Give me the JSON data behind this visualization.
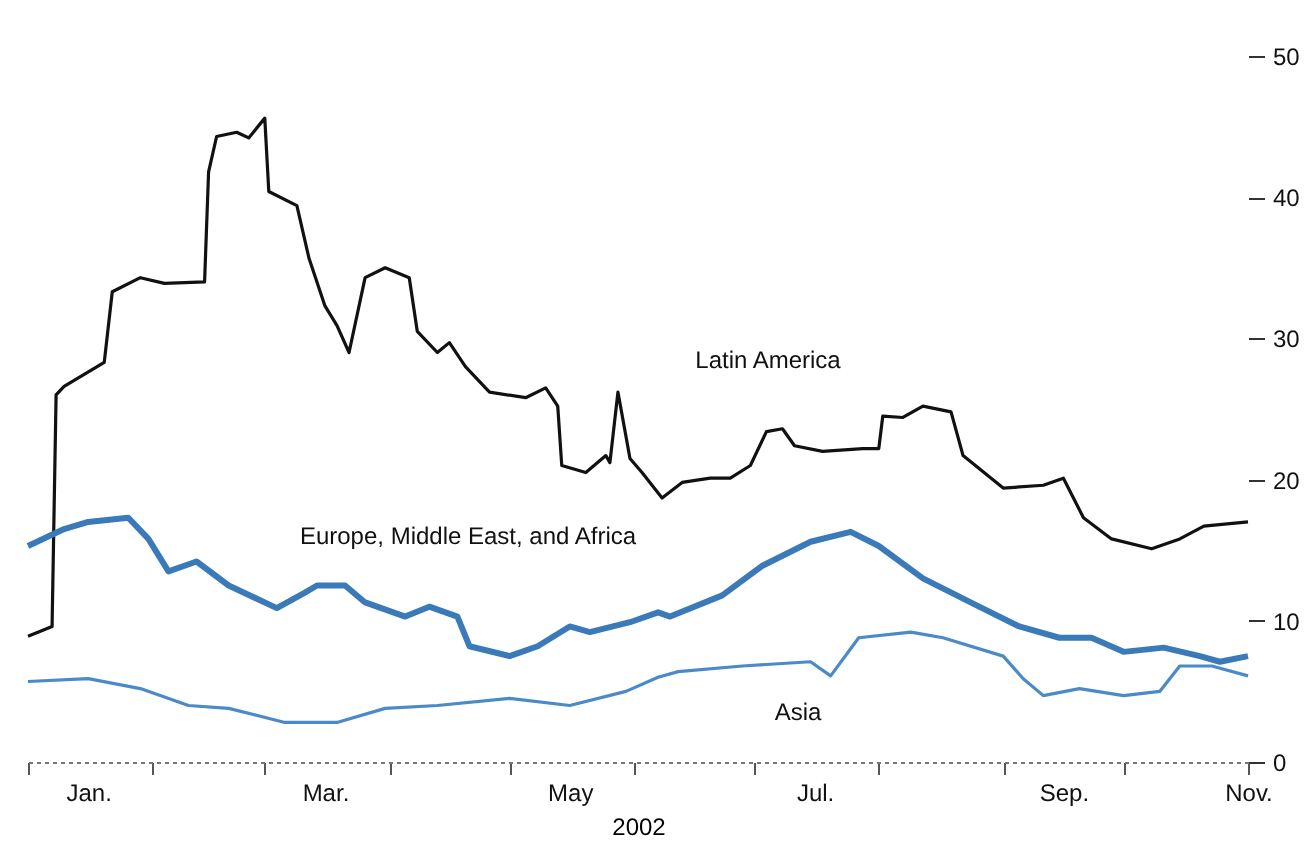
{
  "chart_data": {
    "type": "line",
    "xlabel": "2002",
    "xlim": [
      "2002-01-01",
      "2002-11-01"
    ],
    "xticks": [
      {
        "value": "2002-01-01",
        "label": null
      },
      {
        "value": "2002-02-01",
        "label": null
      },
      {
        "value": "2002-03-01",
        "label": null
      },
      {
        "value": "2002-04-01",
        "label": null
      },
      {
        "value": "2002-05-01",
        "label": null
      },
      {
        "value": "2002-06-01",
        "label": null
      },
      {
        "value": "2002-07-01",
        "label": null
      },
      {
        "value": "2002-08-01",
        "label": null
      },
      {
        "value": "2002-09-01",
        "label": null
      },
      {
        "value": "2002-10-01",
        "label": null
      },
      {
        "value": "2002-11-01",
        "label": null
      },
      {
        "value": "2002-01-16",
        "label": "Jan."
      },
      {
        "value": "2002-03-16",
        "label": "Mar."
      },
      {
        "value": "2002-05-16",
        "label": "May"
      },
      {
        "value": "2002-07-16",
        "label": "Jul."
      },
      {
        "value": "2002-09-16",
        "label": "Sep."
      },
      {
        "value": "2002-11-01",
        "label": "Nov."
      }
    ],
    "ylim": [
      0,
      50
    ],
    "yticks": [
      0,
      10,
      20,
      30,
      40,
      50
    ],
    "series": [
      {
        "name": "Latin America",
        "color": "#111111",
        "x": [
          "2002-01-01",
          "2002-01-07",
          "2002-01-08",
          "2002-01-10",
          "2002-01-20",
          "2002-01-22",
          "2002-01-29",
          "2002-02-04",
          "2002-02-14",
          "2002-02-15",
          "2002-02-17",
          "2002-02-22",
          "2002-02-25",
          "2002-03-01",
          "2002-03-02",
          "2002-03-09",
          "2002-03-12",
          "2002-03-16",
          "2002-03-19",
          "2002-03-22",
          "2002-03-26",
          "2002-03-31",
          "2002-04-06",
          "2002-04-08",
          "2002-04-13",
          "2002-04-16",
          "2002-04-20",
          "2002-04-26",
          "2002-05-05",
          "2002-05-10",
          "2002-05-13",
          "2002-05-14",
          "2002-05-20",
          "2002-05-25",
          "2002-05-26",
          "2002-05-28",
          "2002-05-31",
          "2002-06-03",
          "2002-06-08",
          "2002-06-13",
          "2002-06-20",
          "2002-06-25",
          "2002-06-30",
          "2002-07-04",
          "2002-07-08",
          "2002-07-11",
          "2002-07-18",
          "2002-07-28",
          "2002-08-01",
          "2002-08-02",
          "2002-08-07",
          "2002-08-12",
          "2002-08-19",
          "2002-08-22",
          "2002-08-29",
          "2002-09-01",
          "2002-09-11",
          "2002-09-16",
          "2002-09-21",
          "2002-09-28",
          "2002-10-08",
          "2002-10-15",
          "2002-10-21",
          "2002-11-01"
        ],
        "values": [
          8.9,
          9.6,
          26,
          26.6,
          28.3,
          33.3,
          34.3,
          33.9,
          34,
          41.8,
          44.3,
          44.6,
          44.2,
          45.6,
          40.4,
          39.4,
          35.7,
          32.3,
          30.9,
          29,
          34.3,
          35,
          34.3,
          30.5,
          29,
          29.7,
          28,
          26.2,
          25.8,
          26.5,
          25.2,
          21,
          20.5,
          21.7,
          21.2,
          26.2,
          21.5,
          20.5,
          18.7,
          19.8,
          20.1,
          20.1,
          21,
          23.4,
          23.6,
          22.4,
          22,
          22.2,
          22.2,
          24.5,
          24.4,
          25.2,
          24.8,
          21.7,
          20.1,
          19.4,
          19.6,
          20.1,
          17.3,
          15.8,
          15.1,
          15.8,
          16.7,
          17
        ]
      },
      {
        "name": "Europe, Middle East, and Africa",
        "color": "#3a7ab8",
        "x": [
          "2002-01-01",
          "2002-01-10",
          "2002-01-16",
          "2002-01-26",
          "2002-01-31",
          "2002-02-05",
          "2002-02-12",
          "2002-02-20",
          "2002-03-04",
          "2002-03-11",
          "2002-03-14",
          "2002-03-21",
          "2002-03-26",
          "2002-04-05",
          "2002-04-11",
          "2002-04-18",
          "2002-04-21",
          "2002-05-01",
          "2002-05-08",
          "2002-05-16",
          "2002-05-21",
          "2002-05-31",
          "2002-06-07",
          "2002-06-10",
          "2002-06-23",
          "2002-07-03",
          "2002-07-15",
          "2002-07-25",
          "2002-08-01",
          "2002-08-12",
          "2002-08-26",
          "2002-09-05",
          "2002-09-15",
          "2002-09-23",
          "2002-10-01",
          "2002-10-11",
          "2002-10-20",
          "2002-10-25",
          "2002-11-01"
        ],
        "values": [
          15.3,
          16.5,
          17,
          17.3,
          15.8,
          13.5,
          14.2,
          12.5,
          10.9,
          12,
          12.5,
          12.5,
          11.3,
          10.3,
          11,
          10.3,
          8.2,
          7.5,
          8.2,
          9.6,
          9.2,
          9.9,
          10.6,
          10.3,
          11.8,
          13.9,
          15.6,
          16.3,
          15.3,
          13,
          11,
          9.6,
          8.8,
          8.8,
          7.8,
          8.1,
          7.5,
          7.1,
          7.5
        ]
      },
      {
        "name": "Asia",
        "color": "#4a8ac8",
        "x": [
          "2002-01-01",
          "2002-01-16",
          "2002-01-29",
          "2002-02-10",
          "2002-02-20",
          "2002-03-06",
          "2002-03-19",
          "2002-03-31",
          "2002-04-13",
          "2002-05-01",
          "2002-05-16",
          "2002-05-30",
          "2002-06-07",
          "2002-06-12",
          "2002-06-28",
          "2002-07-15",
          "2002-07-20",
          "2002-07-27",
          "2002-08-09",
          "2002-08-17",
          "2002-09-01",
          "2002-09-06",
          "2002-09-11",
          "2002-09-20",
          "2002-10-01",
          "2002-10-10",
          "2002-10-15",
          "2002-10-23",
          "2002-11-01"
        ],
        "values": [
          5.7,
          5.9,
          5.2,
          4,
          3.8,
          2.8,
          2.8,
          3.8,
          4,
          4.5,
          4,
          5,
          6,
          6.4,
          6.8,
          7.1,
          6.1,
          8.8,
          9.2,
          8.8,
          7.5,
          5.9,
          4.7,
          5.2,
          4.7,
          5,
          6.8,
          6.8,
          6.1
        ]
      }
    ]
  }
}
